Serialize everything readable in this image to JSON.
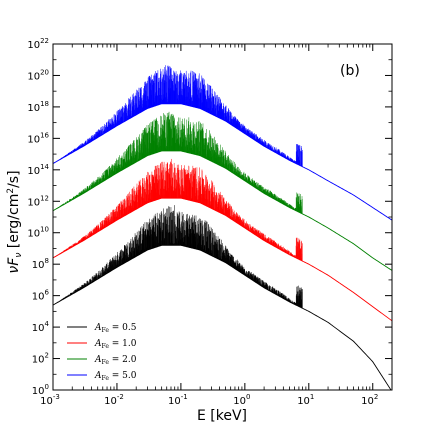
{
  "chart_data": {
    "type": "line",
    "panel_label": "(b)",
    "xlabel": "E [keV]",
    "ylabel": "νFν [erg/cm²/s]",
    "xlabel_parts": {
      "main": "E [keV]"
    },
    "ylabel_parts": {
      "nu": "ν",
      "F": "F",
      "sub": "ν",
      "rest": " [erg/cm",
      "sq": "2",
      "end": "/s]"
    },
    "x_scale": "log",
    "y_scale": "log",
    "xlim": [
      0.001,
      200
    ],
    "ylim": [
      1,
      1e+22
    ],
    "x_ticks": [
      {
        "base": "10",
        "exp": "-3"
      },
      {
        "base": "10",
        "exp": "-2"
      },
      {
        "base": "10",
        "exp": "-1"
      },
      {
        "base": "10",
        "exp": "0"
      },
      {
        "base": "10",
        "exp": "1"
      },
      {
        "base": "10",
        "exp": "2"
      }
    ],
    "y_ticks": [
      {
        "base": "10",
        "exp": "0"
      },
      {
        "base": "10",
        "exp": "2"
      },
      {
        "base": "10",
        "exp": "4"
      },
      {
        "base": "10",
        "exp": "6"
      },
      {
        "base": "10",
        "exp": "8"
      },
      {
        "base": "10",
        "exp": "10"
      },
      {
        "base": "10",
        "exp": "12"
      },
      {
        "base": "10",
        "exp": "14"
      },
      {
        "base": "10",
        "exp": "16"
      },
      {
        "base": "10",
        "exp": "18"
      },
      {
        "base": "10",
        "exp": "20"
      },
      {
        "base": "10",
        "exp": "22"
      }
    ],
    "legend_position": "bottom-left",
    "series": [
      {
        "name": "A_Fe = 0.5",
        "legend_label": "A",
        "legend_sub": "Fe",
        "legend_value": " = 0.5",
        "color": "#000000",
        "x": [
          0.001,
          0.003,
          0.01,
          0.03,
          0.05,
          0.1,
          0.2,
          0.5,
          1,
          2,
          5,
          10,
          20,
          50,
          100,
          200
        ],
        "log10_y": [
          5.4,
          6.5,
          7.8,
          8.9,
          9.2,
          9.2,
          8.9,
          8.1,
          7.3,
          6.5,
          5.6,
          5.0,
          4.3,
          3.1,
          1.8,
          -0.1
        ],
        "line_peak_log10_y": 11.2
      },
      {
        "name": "A_Fe = 1.0",
        "legend_label": "A",
        "legend_sub": "Fe",
        "legend_value": " = 1.0",
        "color": "#ff0000",
        "x": [
          0.001,
          0.003,
          0.01,
          0.03,
          0.05,
          0.1,
          0.2,
          0.5,
          1,
          2,
          5,
          10,
          20,
          50,
          100,
          200
        ],
        "log10_y": [
          8.4,
          9.5,
          10.8,
          11.9,
          12.2,
          12.2,
          11.9,
          11.1,
          10.3,
          9.5,
          8.6,
          8.0,
          7.3,
          6.2,
          5.3,
          4.4
        ],
        "line_peak_log10_y": 14.2
      },
      {
        "name": "A_Fe = 2.0",
        "legend_label": "A",
        "legend_sub": "Fe",
        "legend_value": " = 2.0",
        "color": "#008000",
        "x": [
          0.001,
          0.003,
          0.01,
          0.03,
          0.05,
          0.1,
          0.2,
          0.5,
          1,
          2,
          5,
          10,
          20,
          50,
          100,
          200
        ],
        "log10_y": [
          11.4,
          12.5,
          13.8,
          14.9,
          15.2,
          15.2,
          14.9,
          14.1,
          13.3,
          12.5,
          11.6,
          11.0,
          10.3,
          9.3,
          8.4,
          7.6
        ],
        "line_peak_log10_y": 17.2
      },
      {
        "name": "A_Fe = 5.0",
        "legend_label": "A",
        "legend_sub": "Fe",
        "legend_value": " = 5.0",
        "color": "#0000ff",
        "x": [
          0.001,
          0.003,
          0.01,
          0.03,
          0.05,
          0.1,
          0.2,
          0.5,
          1,
          2,
          5,
          10,
          20,
          50,
          100,
          200
        ],
        "log10_y": [
          14.4,
          15.5,
          16.8,
          17.9,
          18.2,
          18.2,
          17.9,
          17.1,
          16.3,
          15.5,
          14.6,
          14.0,
          13.3,
          12.4,
          11.6,
          10.8
        ],
        "line_peak_log10_y": 20.2
      }
    ]
  }
}
